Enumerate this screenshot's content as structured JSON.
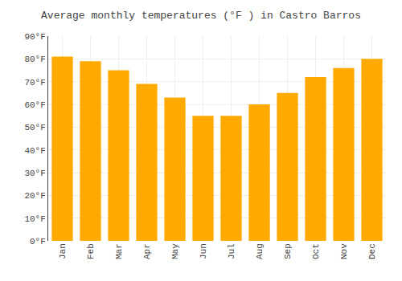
{
  "chart_data": {
    "type": "bar",
    "title": "Average monthly temperatures (°F ) in Castro Barros",
    "categories": [
      "Jan",
      "Feb",
      "Mar",
      "Apr",
      "May",
      "Jun",
      "Jul",
      "Aug",
      "Sep",
      "Oct",
      "Nov",
      "Dec"
    ],
    "values": [
      81,
      79,
      75,
      69,
      63,
      55,
      55,
      60,
      65,
      72,
      76,
      80
    ],
    "color": "#FFAA00",
    "ylim": [
      0,
      90
    ],
    "yticks": [
      {
        "value": 0,
        "label": "0°F"
      },
      {
        "value": 10,
        "label": "10°F"
      },
      {
        "value": 20,
        "label": "20°F"
      },
      {
        "value": 30,
        "label": "30°F"
      },
      {
        "value": 40,
        "label": "40°F"
      },
      {
        "value": 50,
        "label": "50°F"
      },
      {
        "value": 60,
        "label": "60°F"
      },
      {
        "value": 70,
        "label": "70°F"
      },
      {
        "value": 80,
        "label": "80°F"
      },
      {
        "value": 90,
        "label": "90°F"
      }
    ],
    "grid": true
  }
}
